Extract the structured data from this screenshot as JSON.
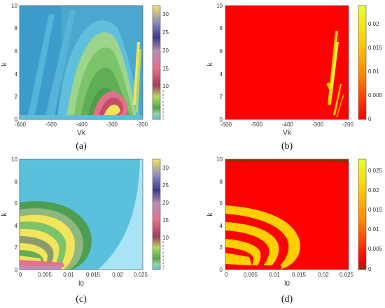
{
  "chart_data": [
    {
      "panel": "(a)",
      "type": "heatmap",
      "caption": "(a)",
      "xlabel": "Vk",
      "ylabel": "k",
      "xlim": [
        -600,
        -200
      ],
      "ylim": [
        0,
        10
      ],
      "xticks": [
        "-600",
        "-500",
        "-400",
        "-300",
        "-200"
      ],
      "yticks": [
        "0",
        "2",
        "4",
        "6",
        "8",
        "10"
      ],
      "colorbar": {
        "range": [
          0,
          32
        ],
        "ticks": [
          "1",
          "2",
          "3",
          "4",
          "5",
          "6",
          "7",
          "8",
          "9",
          "10",
          "15",
          "20",
          "25",
          "30"
        ],
        "colors": [
          "#5bc0dc",
          "#8fd6a0",
          "#4caa4c",
          "#b6d95c",
          "#a43c5a",
          "#e86f8c",
          "#c08ab8",
          "#3a3c8c",
          "#8c88c4",
          "#f2e45c"
        ]
      }
    },
    {
      "panel": "(b)",
      "type": "heatmap",
      "caption": "(b)",
      "xlabel": "Vk",
      "ylabel": "k",
      "xlim": [
        -600,
        -200
      ],
      "ylim": [
        0,
        10
      ],
      "xticks": [
        "-600",
        "-500",
        "-400",
        "-300",
        "-200"
      ],
      "yticks": [
        "0",
        "2",
        "4",
        "6",
        "8",
        "10"
      ],
      "colorbar": {
        "range": [
          0,
          0.024
        ],
        "ticks": [
          "0",
          "0.005",
          "0.01",
          "0.015",
          "0.02"
        ],
        "colors": [
          "#ff0000",
          "#ff8800",
          "#ffd000",
          "#e8ff30"
        ]
      }
    },
    {
      "panel": "(c)",
      "type": "heatmap",
      "caption": "(c)",
      "xlabel": "l0",
      "ylabel": "k",
      "xlim": [
        0,
        0.025
      ],
      "ylim": [
        0,
        10
      ],
      "xticks": [
        "0",
        "0.005",
        "0.01",
        "0.015",
        "0.02",
        "0.025"
      ],
      "yticks": [
        "0",
        "2",
        "4",
        "6",
        "8",
        "10"
      ],
      "colorbar": {
        "range": [
          0,
          32
        ],
        "ticks": [
          "1",
          "2",
          "3",
          "4",
          "5",
          "6",
          "7",
          "8",
          "9",
          "10",
          "15",
          "20",
          "25",
          "30"
        ],
        "colors": [
          "#5bc0dc",
          "#8fd6a0",
          "#4caa4c",
          "#b6d95c",
          "#a43c5a",
          "#e86f8c",
          "#c08ab8",
          "#3a3c8c",
          "#8c88c4",
          "#f2e45c"
        ]
      }
    },
    {
      "panel": "(d)",
      "type": "heatmap",
      "caption": "(d)",
      "xlabel": "l0",
      "ylabel": "k",
      "xlim": [
        0,
        0.025
      ],
      "ylim": [
        0,
        10
      ],
      "xticks": [
        "0",
        "0.005",
        "0.01",
        "0.015",
        "0.02",
        "0.025"
      ],
      "yticks": [
        "0",
        "2",
        "4",
        "6",
        "8",
        "10"
      ],
      "colorbar": {
        "range": [
          0,
          0.028
        ],
        "ticks": [
          "0",
          "0.005",
          "0.01",
          "0.015",
          "0.02",
          "0.025"
        ],
        "colors": [
          "#8a3000",
          "#ff0000",
          "#ff8800",
          "#ffd000",
          "#e8ff30"
        ]
      }
    }
  ]
}
